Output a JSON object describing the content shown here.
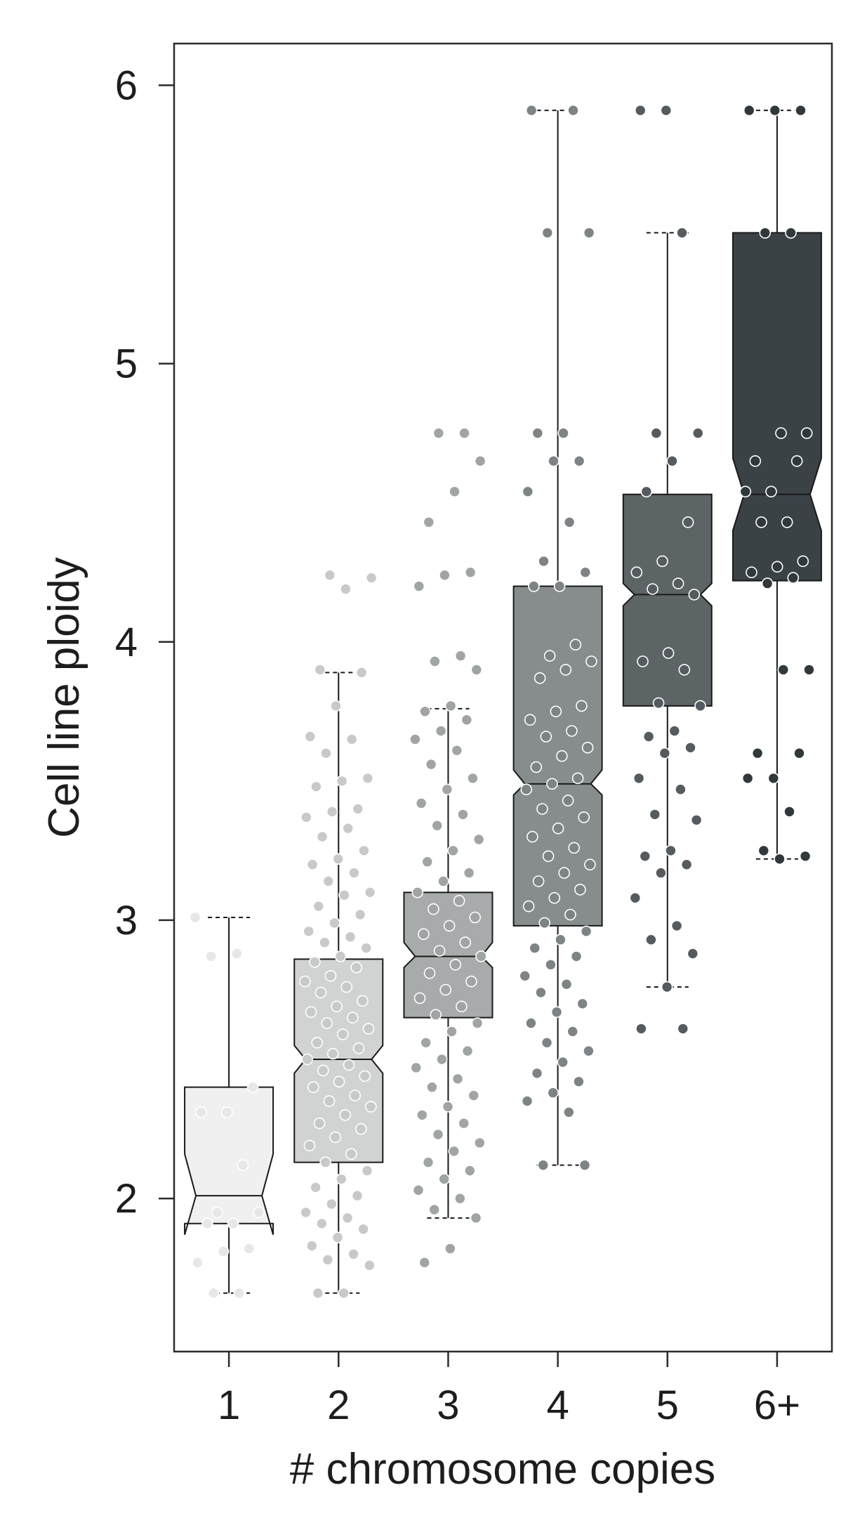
{
  "chart_data": {
    "type": "box",
    "xlabel": "# chromosome copies",
    "ylabel": "Cell line ploidy",
    "categories": [
      "1",
      "2",
      "3",
      "4",
      "5",
      "6+"
    ],
    "ylim": [
      1.45,
      6.15
    ],
    "yticks": [
      2,
      3,
      4,
      5,
      6
    ],
    "ytick_labels": [
      "2",
      "3",
      "4",
      "5",
      "6"
    ],
    "notched": true,
    "grid": false,
    "legend": "none",
    "box_colors": [
      "#eff0ef",
      "#d1d3d2",
      "#a8abab",
      "#878c8d",
      "#5d6466",
      "#3a4245"
    ],
    "point_colors": [
      "#e6e7e6",
      "#c8caca",
      "#a0a4a4",
      "#7e8385",
      "#555b5e",
      "#30383b"
    ],
    "boxes": [
      {
        "category": "1",
        "whisker_low": 1.66,
        "q1": 1.91,
        "median": 2.01,
        "notch_low": 1.87,
        "notch_high": 2.16,
        "q3": 2.4,
        "whisker_high": 3.01
      },
      {
        "category": "2",
        "whisker_low": 1.66,
        "q1": 2.13,
        "median": 2.5,
        "notch_low": 2.45,
        "notch_high": 2.55,
        "q3": 2.86,
        "whisker_high": 3.89
      },
      {
        "category": "3",
        "whisker_low": 1.93,
        "q1": 2.65,
        "median": 2.87,
        "notch_low": 2.83,
        "notch_high": 2.92,
        "q3": 3.1,
        "whisker_high": 3.76
      },
      {
        "category": "4",
        "whisker_low": 2.12,
        "q1": 2.98,
        "median": 3.49,
        "notch_low": 3.45,
        "notch_high": 3.54,
        "q3": 4.2,
        "whisker_high": 5.91
      },
      {
        "category": "5",
        "whisker_low": 2.76,
        "q1": 3.77,
        "median": 4.17,
        "notch_low": 4.13,
        "notch_high": 4.21,
        "q3": 4.53,
        "whisker_high": 5.47
      },
      {
        "category": "6+",
        "whisker_low": 3.22,
        "q1": 4.22,
        "median": 4.53,
        "notch_low": 4.4,
        "notch_high": 4.66,
        "q3": 5.47,
        "whisker_high": 5.91
      }
    ],
    "points": [
      [
        3.01,
        2.88,
        2.87,
        2.4,
        2.31,
        2.31,
        2.12,
        1.95,
        1.95,
        1.91,
        1.91,
        1.82,
        1.81,
        1.77,
        1.66,
        1.66
      ],
      [
        4.24,
        4.23,
        4.19,
        3.9,
        3.89,
        3.77,
        3.66,
        3.65,
        3.6,
        3.51,
        3.5,
        3.48,
        3.4,
        3.39,
        3.37,
        3.33,
        3.3,
        3.25,
        3.22,
        3.2,
        3.17,
        3.14,
        3.1,
        3.09,
        3.05,
        3.02,
        2.99,
        2.96,
        2.94,
        2.92,
        2.9,
        2.87,
        2.85,
        2.83,
        2.8,
        2.78,
        2.76,
        2.74,
        2.71,
        2.69,
        2.67,
        2.65,
        2.63,
        2.61,
        2.59,
        2.56,
        2.54,
        2.52,
        2.5,
        2.48,
        2.46,
        2.44,
        2.42,
        2.4,
        2.37,
        2.35,
        2.33,
        2.3,
        2.27,
        2.25,
        2.22,
        2.19,
        2.16,
        2.13,
        2.1,
        2.07,
        2.04,
        2.01,
        1.98,
        1.95,
        1.93,
        1.91,
        1.89,
        1.86,
        1.83,
        1.8,
        1.78,
        1.76,
        1.66,
        1.66
      ],
      [
        4.75,
        4.75,
        4.65,
        4.54,
        4.43,
        4.25,
        4.24,
        4.2,
        3.95,
        3.93,
        3.9,
        3.77,
        3.75,
        3.72,
        3.68,
        3.65,
        3.61,
        3.56,
        3.51,
        3.47,
        3.42,
        3.38,
        3.34,
        3.29,
        3.25,
        3.21,
        3.17,
        3.14,
        3.1,
        3.07,
        3.04,
        3.01,
        2.98,
        2.95,
        2.92,
        2.89,
        2.87,
        2.84,
        2.81,
        2.78,
        2.75,
        2.72,
        2.69,
        2.66,
        2.63,
        2.6,
        2.56,
        2.53,
        2.5,
        2.47,
        2.43,
        2.4,
        2.37,
        2.33,
        2.3,
        2.27,
        2.23,
        2.2,
        2.17,
        2.13,
        2.1,
        2.07,
        2.03,
        2.0,
        1.96,
        1.93,
        1.82,
        1.77
      ],
      [
        5.91,
        5.91,
        5.47,
        5.47,
        4.75,
        4.75,
        4.65,
        4.65,
        4.54,
        4.43,
        4.29,
        4.25,
        4.2,
        4.2,
        3.99,
        3.95,
        3.93,
        3.9,
        3.87,
        3.77,
        3.75,
        3.72,
        3.68,
        3.66,
        3.62,
        3.59,
        3.55,
        3.51,
        3.49,
        3.47,
        3.43,
        3.4,
        3.37,
        3.33,
        3.3,
        3.26,
        3.23,
        3.2,
        3.17,
        3.14,
        3.11,
        3.08,
        3.05,
        3.02,
        2.99,
        2.96,
        2.93,
        2.9,
        2.87,
        2.84,
        2.8,
        2.77,
        2.74,
        2.7,
        2.67,
        2.63,
        2.6,
        2.56,
        2.53,
        2.49,
        2.45,
        2.42,
        2.38,
        2.35,
        2.31,
        2.12,
        2.12
      ],
      [
        5.91,
        5.91,
        5.47,
        4.75,
        4.75,
        4.65,
        4.54,
        4.43,
        4.29,
        4.25,
        4.21,
        4.19,
        4.17,
        3.96,
        3.93,
        3.9,
        3.78,
        3.77,
        3.68,
        3.66,
        3.62,
        3.6,
        3.51,
        3.47,
        3.38,
        3.36,
        3.25,
        3.23,
        3.2,
        3.17,
        3.08,
        2.98,
        2.93,
        2.88,
        2.76,
        2.61,
        2.61
      ],
      [
        5.91,
        5.91,
        5.91,
        5.47,
        5.47,
        4.75,
        4.75,
        4.65,
        4.65,
        4.54,
        4.54,
        4.43,
        4.43,
        4.29,
        4.27,
        4.25,
        4.23,
        4.21,
        3.9,
        3.9,
        3.6,
        3.6,
        3.51,
        3.51,
        3.39,
        3.25,
        3.23,
        3.22
      ]
    ]
  }
}
